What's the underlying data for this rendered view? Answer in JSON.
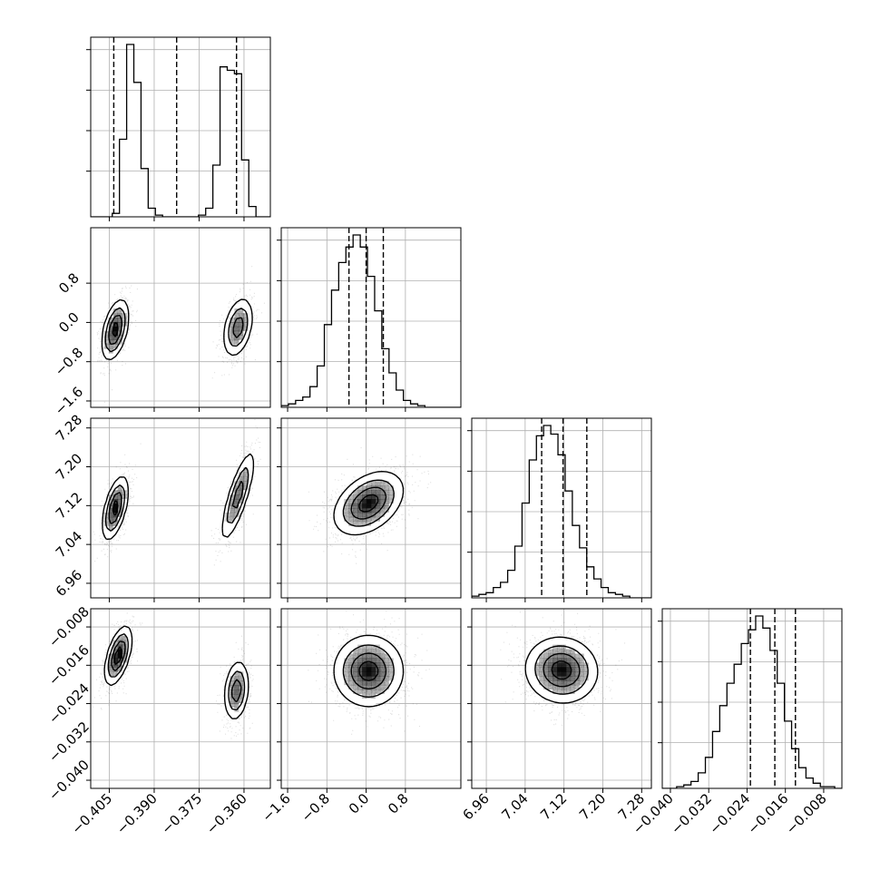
{
  "chart_data": {
    "type": "corner",
    "grid": true,
    "parameters": [
      {
        "label": "",
        "range": [
          -0.4112,
          -0.3512
        ],
        "ticks": [
          "-0.405",
          "-0.390",
          "-0.375",
          "-0.360"
        ],
        "tick_values": [
          -0.405,
          -0.39,
          -0.375,
          -0.36
        ]
      },
      {
        "label": "",
        "range": [
          -1.73,
          1.93
        ],
        "ticks": [
          "-1.6",
          "-0.8",
          "0.0",
          "0.8"
        ],
        "tick_values": [
          -1.6,
          -0.8,
          0.0,
          0.8
        ]
      },
      {
        "label": "",
        "range": [
          6.93,
          7.3
        ],
        "ticks": [
          "6.96",
          "7.04",
          "7.12",
          "7.20",
          "7.28"
        ],
        "tick_values": [
          6.96,
          7.04,
          7.12,
          7.2,
          7.28
        ]
      },
      {
        "label": "",
        "range": [
          -0.0417,
          -0.0042
        ],
        "ticks": [
          "-0.040",
          "-0.032",
          "-0.024",
          "-0.016",
          "-0.008"
        ],
        "tick_values": [
          -0.04,
          -0.032,
          -0.024,
          -0.016,
          -0.008
        ]
      }
    ],
    "histograms": [
      {
        "param": 0,
        "edges_range": [
          -0.4112,
          -0.3512
        ],
        "counts": [
          0,
          0,
          0,
          0.02,
          0.45,
          1.0,
          0.78,
          0.28,
          0.05,
          0.01,
          0.0,
          0.0,
          0.0,
          0.0,
          0.0,
          0.01,
          0.05,
          0.3,
          0.87,
          0.85,
          0.83,
          0.33,
          0.06,
          0.0,
          0.0
        ],
        "quantiles": [
          -0.4035,
          -0.3825,
          -0.3625
        ]
      },
      {
        "param": 1,
        "edges_range": [
          -1.73,
          1.93
        ],
        "counts": [
          0.01,
          0.02,
          0.04,
          0.06,
          0.12,
          0.24,
          0.48,
          0.68,
          0.84,
          0.93,
          1.0,
          0.93,
          0.76,
          0.56,
          0.34,
          0.2,
          0.1,
          0.04,
          0.02,
          0.01,
          0.0,
          0.0,
          0.0,
          0.0,
          0.0
        ],
        "quantiles": [
          -0.35,
          0.0,
          0.35
        ]
      },
      {
        "param": 2,
        "edges_range": [
          6.93,
          7.3
        ],
        "counts": [
          0.01,
          0.02,
          0.03,
          0.06,
          0.09,
          0.16,
          0.3,
          0.55,
          0.8,
          0.94,
          1.0,
          0.95,
          0.83,
          0.62,
          0.42,
          0.29,
          0.18,
          0.11,
          0.06,
          0.03,
          0.02,
          0.01,
          0.0,
          0.0,
          0.0
        ],
        "quantiles": [
          7.074,
          7.118,
          7.167
        ]
      },
      {
        "param": 3,
        "edges_range": [
          -0.0417,
          -0.0042
        ],
        "counts": [
          0.0,
          0.0,
          0.01,
          0.02,
          0.04,
          0.09,
          0.18,
          0.33,
          0.48,
          0.61,
          0.72,
          0.84,
          0.92,
          1.0,
          0.93,
          0.8,
          0.61,
          0.39,
          0.23,
          0.12,
          0.06,
          0.03,
          0.01,
          0.01,
          0.0
        ],
        "quantiles": [
          -0.0233,
          -0.0182,
          -0.0139
        ]
      }
    ],
    "density_2d": [
      {
        "x": 0,
        "y": 1,
        "modes": [
          {
            "cx": -0.403,
            "cy": -0.15,
            "sx": 0.0024,
            "sy": 0.33,
            "rho": 0.45,
            "w": 1.0
          },
          {
            "cx": -0.362,
            "cy": -0.1,
            "sx": 0.0027,
            "sy": 0.33,
            "rho": 0.35,
            "w": 0.8
          }
        ]
      },
      {
        "x": 0,
        "y": 2,
        "modes": [
          {
            "cx": -0.403,
            "cy": 7.115,
            "sx": 0.0023,
            "sy": 0.035,
            "rho": 0.55,
            "w": 1.0
          },
          {
            "cx": -0.362,
            "cy": 7.14,
            "sx": 0.003,
            "sy": 0.05,
            "rho": 0.8,
            "w": 0.8
          }
        ]
      },
      {
        "x": 0,
        "y": 3,
        "modes": [
          {
            "cx": -0.402,
            "cy": -0.014,
            "sx": 0.0024,
            "sy": 0.0033,
            "rho": 0.55,
            "w": 1.0
          },
          {
            "cx": -0.3625,
            "cy": -0.0213,
            "sx": 0.0022,
            "sy": 0.0034,
            "rho": 0.2,
            "w": 0.8
          }
        ]
      },
      {
        "x": 1,
        "y": 2,
        "modes": [
          {
            "cx": 0.05,
            "cy": 7.125,
            "sx": 0.38,
            "sy": 0.035,
            "rho": 0.4,
            "w": 1.0
          }
        ]
      },
      {
        "x": 1,
        "y": 3,
        "modes": [
          {
            "cx": 0.05,
            "cy": -0.0172,
            "sx": 0.38,
            "sy": 0.004,
            "rho": 0.0,
            "w": 1.0
          }
        ]
      },
      {
        "x": 2,
        "y": 3,
        "modes": [
          {
            "cx": 7.115,
            "cy": -0.017,
            "sx": 0.04,
            "sy": 0.0037,
            "rho": -0.05,
            "w": 1.0
          }
        ]
      }
    ],
    "contour_levels": [
      0.18,
      0.4,
      0.65,
      0.88
    ],
    "colors": {
      "line": "#000000",
      "grid": "#b0b0b0",
      "scatter": "#000000",
      "density": "#000000"
    }
  }
}
